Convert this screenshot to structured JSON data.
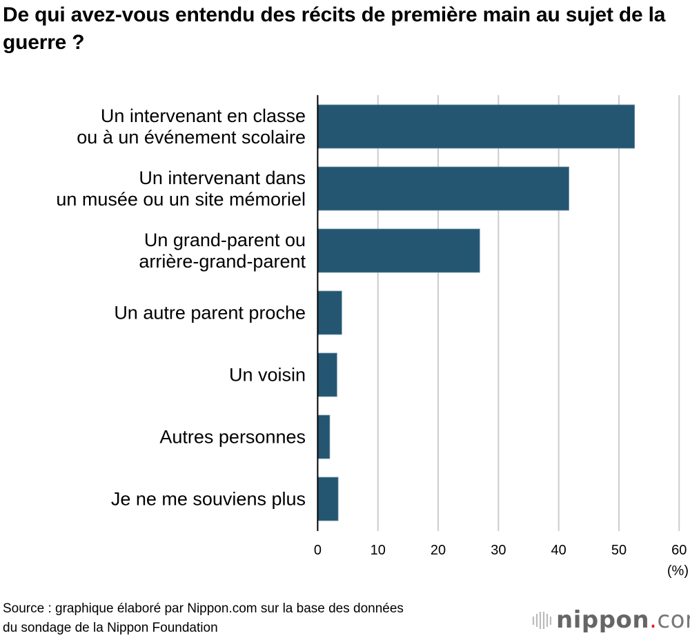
{
  "chart_data": {
    "type": "bar",
    "orientation": "horizontal",
    "title": "De qui avez-vous entendu des récits de première main au sujet de la guerre ?",
    "categories": [
      [
        "Un intervenant en classe",
        "ou à un événement scolaire"
      ],
      [
        "Un intervenant dans",
        "un musée ou un site mémoriel"
      ],
      [
        "Un grand-parent ou",
        "arrière-grand-parent"
      ],
      [
        "Un autre parent proche"
      ],
      [
        "Un voisin"
      ],
      [
        "Autres personnes"
      ],
      [
        "Je ne me souviens plus"
      ]
    ],
    "values": [
      52.6,
      41.7,
      26.9,
      4.0,
      3.2,
      2.0,
      3.4
    ],
    "xlim": [
      0,
      60
    ],
    "xticks": [
      "0",
      "10",
      "20",
      "30",
      "40",
      "50",
      "60"
    ],
    "xunit": "(%)",
    "grid": true,
    "bar_color": "#245672",
    "grid_color": "#cccccc"
  },
  "source": [
    "Source : graphique élaboré par Nippon.com sur la base des données",
    "du sondage de la Nippon Foundation"
  ],
  "logo": {
    "name": "nippon",
    "dot": ".",
    "suffix": "com"
  }
}
